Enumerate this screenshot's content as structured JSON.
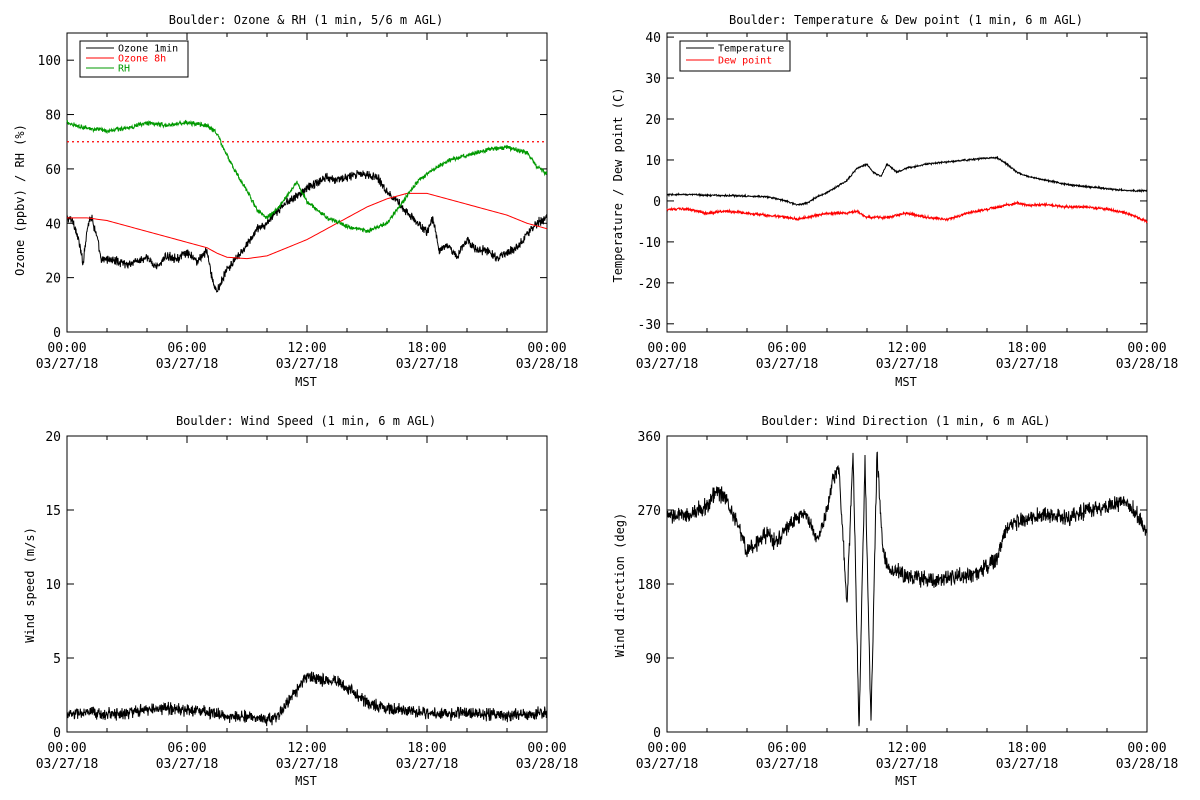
{
  "chart_data": [
    {
      "type": "line",
      "title": "Boulder: Ozone & RH (1 min, 5/6 m AGL)",
      "xlabel": "MST",
      "ylabel": "Ozone (ppbv) / RH (%)",
      "x_ticks": [
        {
          "t": "00:00",
          "d": "03/27/18"
        },
        {
          "t": "06:00",
          "d": "03/27/18"
        },
        {
          "t": "12:00",
          "d": "03/27/18"
        },
        {
          "t": "18:00",
          "d": "03/27/18"
        },
        {
          "t": "00:00",
          "d": "03/28/18"
        }
      ],
      "xlim": [
        0,
        24
      ],
      "ylim": [
        0,
        110
      ],
      "y_ticks": [
        0,
        20,
        40,
        60,
        80,
        100
      ],
      "legend": "top-left",
      "reference_line": {
        "y": 70,
        "color": "#ff0000",
        "style": "dotted"
      },
      "series": [
        {
          "name": "Ozone 1min",
          "color": "#000000",
          "noise": 2.0,
          "x": [
            0,
            0.3,
            0.6,
            0.8,
            1.0,
            1.2,
            1.5,
            1.7,
            2.0,
            2.5,
            3,
            3.5,
            4,
            4.5,
            5,
            5.5,
            6,
            6.5,
            7,
            7.3,
            7.5,
            7.8,
            8,
            8.5,
            9,
            9.5,
            10,
            10.5,
            11,
            11.5,
            12,
            12.5,
            13,
            13.5,
            14,
            14.5,
            15,
            15.5,
            16,
            16.5,
            17,
            17.5,
            18,
            18.3,
            18.6,
            19,
            19.5,
            20,
            20.5,
            21,
            21.5,
            22,
            22.5,
            23,
            23.5,
            24
          ],
          "y": [
            42,
            41,
            33,
            25,
            38,
            43,
            35,
            26,
            27,
            26,
            25,
            26,
            27,
            24,
            28,
            27,
            29,
            26,
            30,
            18,
            15,
            20,
            23,
            27,
            32,
            38,
            40,
            44,
            48,
            50,
            53,
            55,
            57,
            56,
            57,
            58,
            58,
            57,
            52,
            48,
            44,
            40,
            37,
            42,
            30,
            32,
            28,
            34,
            30,
            30,
            27,
            29,
            31,
            36,
            40,
            42
          ]
        },
        {
          "name": "Ozone 8h",
          "color": "#ff0000",
          "x": [
            0,
            1,
            2,
            3,
            4,
            5,
            6,
            7,
            7.5,
            8,
            9,
            10,
            11,
            12,
            13,
            14,
            15,
            16,
            17,
            18,
            19,
            20,
            21,
            22,
            23,
            24
          ],
          "y": [
            42,
            42,
            41,
            39,
            37,
            35,
            33,
            31,
            29,
            27.5,
            27,
            28,
            31,
            34,
            38,
            42,
            46,
            49,
            51,
            51,
            49,
            47,
            45,
            43,
            40,
            38
          ]
        },
        {
          "name": "RH",
          "color": "#009900",
          "noise": 1.0,
          "x": [
            0,
            1,
            2,
            3,
            4,
            5,
            6,
            7,
            7.5,
            8,
            8.5,
            9,
            9.5,
            10,
            10.5,
            11,
            11.5,
            12,
            12.5,
            13,
            14,
            15,
            16,
            16.5,
            17,
            17.5,
            18,
            19,
            20,
            21,
            22,
            23,
            23.5,
            24
          ],
          "y": [
            77,
            75,
            74,
            75,
            77,
            76,
            77,
            76,
            73,
            65,
            58,
            52,
            45,
            42,
            45,
            50,
            55,
            48,
            45,
            42,
            39,
            37,
            40,
            45,
            50,
            55,
            58,
            63,
            65,
            67,
            68,
            66,
            61,
            58
          ]
        }
      ]
    },
    {
      "type": "line",
      "title": "Boulder: Temperature & Dew point (1 min, 6 m AGL)",
      "xlabel": "MST",
      "ylabel": "Temperature / Dew point (C)",
      "x_ticks": [
        {
          "t": "00:00",
          "d": "03/27/18"
        },
        {
          "t": "06:00",
          "d": "03/27/18"
        },
        {
          "t": "12:00",
          "d": "03/27/18"
        },
        {
          "t": "18:00",
          "d": "03/27/18"
        },
        {
          "t": "00:00",
          "d": "03/28/18"
        }
      ],
      "xlim": [
        0,
        24
      ],
      "ylim": [
        -32,
        41
      ],
      "y_ticks": [
        -30,
        -20,
        -10,
        0,
        10,
        20,
        30,
        40
      ],
      "legend": "top-left",
      "series": [
        {
          "name": "Temperature",
          "color": "#000000",
          "noise": 0.25,
          "x": [
            0,
            1,
            2,
            3,
            4,
            5,
            6,
            6.5,
            7,
            7.5,
            8,
            8.5,
            9,
            9.5,
            10,
            10.3,
            10.7,
            11,
            11.5,
            12,
            13,
            14,
            15,
            16,
            16.5,
            17,
            17.5,
            18,
            19,
            20,
            21,
            22,
            23,
            24
          ],
          "y": [
            1.5,
            1.6,
            1.4,
            1.3,
            1.2,
            1,
            0,
            -1,
            -0.5,
            1,
            2,
            3.5,
            5,
            8,
            9,
            7,
            6,
            9,
            7,
            8,
            9,
            9.5,
            10,
            10.5,
            10.5,
            9,
            7,
            6,
            5,
            4,
            3.5,
            3,
            2.5,
            2.5
          ]
        },
        {
          "name": "Dew point",
          "color": "#ff0000",
          "noise": 0.4,
          "x": [
            0,
            1,
            2,
            3,
            4,
            5,
            6,
            6.5,
            7,
            8,
            9,
            9.5,
            10,
            11,
            12,
            13,
            14,
            15,
            16,
            17,
            17.5,
            18,
            19,
            20,
            21,
            22,
            23,
            24
          ],
          "y": [
            -2,
            -2,
            -3,
            -2.5,
            -3,
            -3.5,
            -4,
            -4.5,
            -4,
            -3,
            -3,
            -2.5,
            -4,
            -4,
            -3,
            -4,
            -4.5,
            -3,
            -2,
            -1,
            -0.5,
            -1,
            -1,
            -1.5,
            -1.5,
            -2,
            -3,
            -5
          ]
        }
      ]
    },
    {
      "type": "line",
      "title": "Boulder: Wind Speed (1 min, 6 m AGL)",
      "xlabel": "MST",
      "ylabel": "Wind speed (m/s)",
      "x_ticks": [
        {
          "t": "00:00",
          "d": "03/27/18"
        },
        {
          "t": "06:00",
          "d": "03/27/18"
        },
        {
          "t": "12:00",
          "d": "03/27/18"
        },
        {
          "t": "18:00",
          "d": "03/27/18"
        },
        {
          "t": "00:00",
          "d": "03/28/18"
        }
      ],
      "xlim": [
        0,
        24
      ],
      "ylim": [
        0,
        20
      ],
      "y_ticks": [
        0,
        5,
        10,
        15,
        20
      ],
      "series": [
        {
          "name": "",
          "color": "#000000",
          "noise": 0.5,
          "x": [
            0,
            1,
            2,
            3,
            4,
            5,
            6,
            7,
            8,
            9,
            10,
            10.5,
            11,
            11.5,
            12,
            12.5,
            13,
            13.5,
            14,
            14.5,
            15,
            16,
            17,
            18,
            19,
            20,
            21,
            22,
            23,
            24
          ],
          "y": [
            1.2,
            1.3,
            1.2,
            1.3,
            1.5,
            1.6,
            1.5,
            1.4,
            1,
            1.1,
            0.8,
            1,
            2,
            2.8,
            3.8,
            3.6,
            3.5,
            3.4,
            3,
            2.5,
            2,
            1.6,
            1.4,
            1.3,
            1.2,
            1.3,
            1.2,
            1.1,
            1.2,
            1.3
          ]
        }
      ]
    },
    {
      "type": "line",
      "title": "Boulder: Wind Direction (1 min, 6 m AGL)",
      "xlabel": "MST",
      "ylabel": "Wind direction (deg)",
      "x_ticks": [
        {
          "t": "00:00",
          "d": "03/27/18"
        },
        {
          "t": "06:00",
          "d": "03/27/18"
        },
        {
          "t": "12:00",
          "d": "03/27/18"
        },
        {
          "t": "18:00",
          "d": "03/27/18"
        },
        {
          "t": "00:00",
          "d": "03/28/18"
        }
      ],
      "xlim": [
        0,
        24
      ],
      "ylim": [
        0,
        360
      ],
      "y_ticks": [
        0,
        90,
        180,
        270,
        360
      ],
      "series": [
        {
          "name": "",
          "color": "#000000",
          "noise": 12,
          "x": [
            0,
            0.5,
            1,
            1.5,
            2,
            2.5,
            3,
            3.5,
            4,
            4.5,
            5,
            5.5,
            6,
            6.5,
            7,
            7.5,
            8,
            8.3,
            8.6,
            9,
            9.3,
            9.6,
            9.9,
            10.2,
            10.5,
            10.8,
            11,
            11.5,
            12,
            13,
            14,
            15,
            16,
            16.5,
            17,
            17.5,
            18,
            19,
            20,
            21,
            22,
            23,
            23.5,
            24
          ],
          "y": [
            260,
            265,
            262,
            270,
            275,
            295,
            280,
            255,
            220,
            230,
            240,
            230,
            250,
            260,
            265,
            230,
            270,
            310,
            320,
            150,
            340,
            5,
            330,
            10,
            340,
            220,
            200,
            195,
            190,
            185,
            188,
            190,
            200,
            210,
            250,
            255,
            260,
            265,
            260,
            270,
            275,
            280,
            265,
            240
          ]
        }
      ]
    }
  ]
}
